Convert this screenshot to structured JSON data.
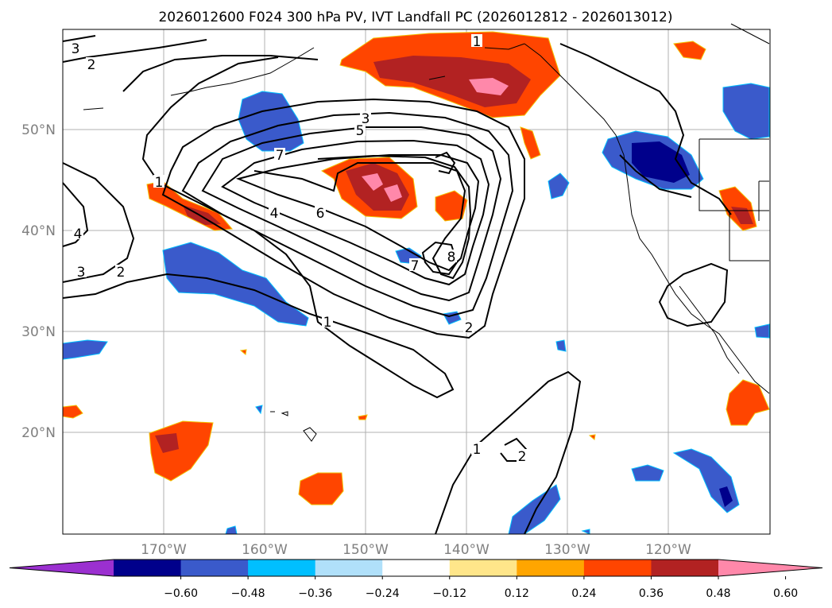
{
  "title": "2026012600 F024 300 hPa PV, IVT Landfall PC (2026012812 - 2026013012)",
  "map": {
    "lon_range": [
      -180,
      -110
    ],
    "lat_range": [
      10,
      60
    ],
    "lat_ticks": [
      {
        "value": 50,
        "label": "50°N"
      },
      {
        "value": 40,
        "label": "40°N"
      },
      {
        "value": 30,
        "label": "30°N"
      },
      {
        "value": 20,
        "label": "20°N"
      }
    ],
    "lon_ticks": [
      {
        "value": -170,
        "label": "170°W"
      },
      {
        "value": -160,
        "label": "160°W"
      },
      {
        "value": -150,
        "label": "150°W"
      },
      {
        "value": -140,
        "label": "140°W"
      },
      {
        "value": -130,
        "label": "130°W"
      },
      {
        "value": -120,
        "label": "120°W"
      }
    ],
    "grid": true,
    "pv_contour_labels": [
      "3",
      "2",
      "1",
      "4",
      "3",
      "2",
      "1",
      "7",
      "6",
      "5",
      "3",
      "4",
      "8",
      "7",
      "2",
      "1",
      "1",
      "2"
    ]
  },
  "colorbar": {
    "ticks": [
      "−0.60",
      "−0.48",
      "−0.36",
      "−0.24",
      "−0.12",
      "0.12",
      "0.24",
      "0.36",
      "0.48",
      "0.60"
    ],
    "colors": [
      "#9b30d0",
      "#00008b",
      "#3a5acb",
      "#00bfff",
      "#b0e0fa",
      "#ffffff",
      "#ffe68a",
      "#ffa500",
      "#ff4500",
      "#b22222",
      "#ff88aa"
    ]
  }
}
